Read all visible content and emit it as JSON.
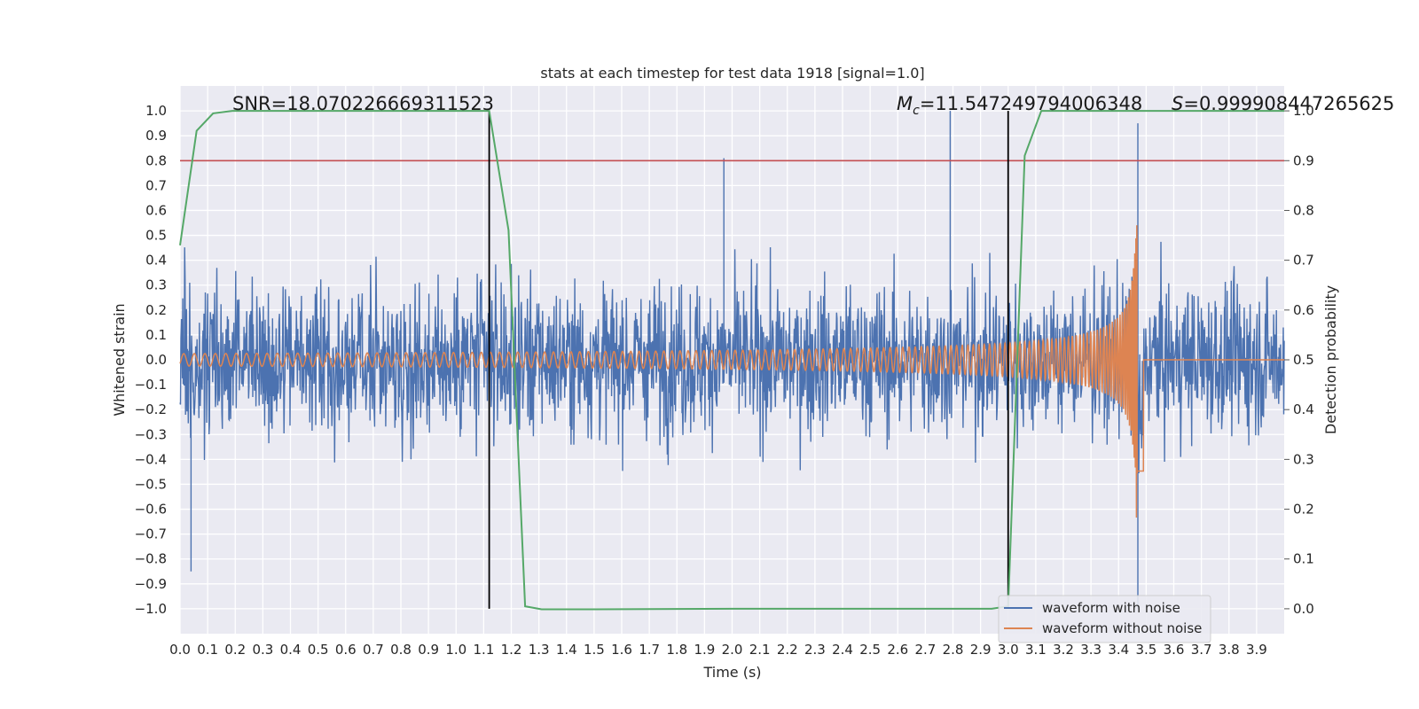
{
  "chart_data": {
    "type": "line",
    "title": "stats at each timestep for test data 1918 [signal=1.0]",
    "xlabel": "Time (s)",
    "ylabel": "Whitened strain",
    "ylabel_right": "Detection probability",
    "xlim": [
      0.0,
      4.0
    ],
    "ylim": [
      -1.1,
      1.1
    ],
    "ylim_right": [
      -0.05,
      1.05
    ],
    "grid": true,
    "x_ticks": [
      "0.0",
      "0.1",
      "0.2",
      "0.3",
      "0.4",
      "0.5",
      "0.6",
      "0.7",
      "0.8",
      "0.9",
      "1.0",
      "1.1",
      "1.2",
      "1.3",
      "1.4",
      "1.5",
      "1.6",
      "1.7",
      "1.8",
      "1.9",
      "2.0",
      "2.1",
      "2.2",
      "2.3",
      "2.4",
      "2.5",
      "2.6",
      "2.7",
      "2.8",
      "2.9",
      "3.0",
      "3.1",
      "3.2",
      "3.3",
      "3.4",
      "3.5",
      "3.6",
      "3.7",
      "3.8",
      "3.9"
    ],
    "y_ticks": [
      "1.0",
      "0.9",
      "0.8",
      "0.7",
      "0.6",
      "0.5",
      "0.4",
      "0.3",
      "0.2",
      "0.1",
      "0.0",
      "−0.1",
      "−0.2",
      "−0.3",
      "−0.4",
      "−0.5",
      "−0.6",
      "−0.7",
      "−0.8",
      "−0.9",
      "−1.0"
    ],
    "y_ticks_right": [
      "1.0",
      "0.9",
      "0.8",
      "0.7",
      "0.6",
      "0.5",
      "0.4",
      "0.3",
      "0.2",
      "0.1",
      "0.0"
    ],
    "annotations": {
      "snr": "SNR=18.070226669311523",
      "mc_symbol": "M",
      "mc_subscript": "c",
      "mc_value": "=11.547249794006348",
      "s_symbol": "S",
      "s_value": "=0.999908447265625"
    },
    "threshold_line": {
      "y_right": 0.9,
      "color": "#c44e52"
    },
    "vertical_lines": [
      1.12,
      3.0
    ],
    "series": [
      {
        "name": "waveform with noise",
        "color": "#4c72b0",
        "axis": "left",
        "description_values": {
          "sample_rate_approx": 2048,
          "typical_amplitude": 0.25,
          "noted_extrema": [
            [
              0.04,
              -0.85
            ],
            [
              1.97,
              0.81
            ],
            [
              2.79,
              1.0
            ],
            [
              3.47,
              0.95
            ],
            [
              3.47,
              -1.0
            ]
          ]
        }
      },
      {
        "name": "waveform without noise",
        "color": "#dd8452",
        "axis": "left",
        "chirp": {
          "start": 0.0,
          "merger": 3.47,
          "amp_start": 0.025,
          "amp_peak": 0.68,
          "f_start": 26
        }
      },
      {
        "name": "detection probability",
        "color": "#55a868",
        "axis": "right",
        "x": [
          0.0,
          0.06,
          0.12,
          0.19,
          0.25,
          0.5,
          0.75,
          1.0,
          1.06,
          1.12,
          1.19,
          1.25,
          1.31,
          1.5,
          2.0,
          2.5,
          2.94,
          3.0,
          3.06,
          3.12,
          3.19,
          3.5,
          3.75,
          4.0
        ],
        "values": [
          0.73,
          0.96,
          0.995,
          1.0,
          1.0,
          1.0,
          1.0,
          1.0,
          1.0,
          1.0,
          0.76,
          0.005,
          -0.001,
          -0.001,
          0.0,
          0.0,
          0.0,
          0.005,
          0.91,
          1.0,
          1.0,
          1.0,
          1.0,
          1.0
        ]
      }
    ],
    "legend": {
      "placement": "lower-right",
      "entries": [
        {
          "label": "waveform with noise",
          "color": "#4c72b0"
        },
        {
          "label": "waveform without noise",
          "color": "#dd8452"
        }
      ]
    }
  }
}
